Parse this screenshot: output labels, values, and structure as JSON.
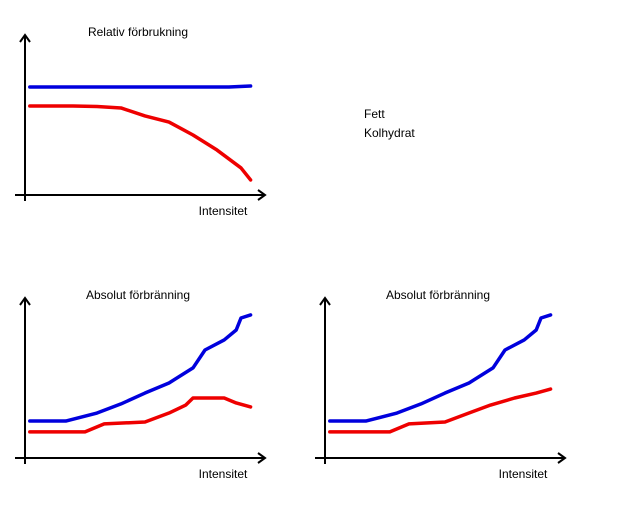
{
  "chart_data": [
    {
      "type": "line",
      "title": "Relativ förbrukning",
      "xlabel": "Intensitet",
      "xlim": [
        0,
        10
      ],
      "ylim": [
        0,
        100
      ],
      "legend": "right",
      "series": [
        {
          "name": "Fett",
          "color": "#ee0000",
          "x": [
            0.2,
            1,
            2,
            3,
            4,
            5,
            6,
            7,
            8,
            9,
            9.4
          ],
          "values": [
            55.6,
            55.6,
            55.6,
            55.3,
            54.4,
            49.4,
            45.6,
            37.5,
            28.1,
            16.9,
            9.4
          ]
        },
        {
          "name": "Kolhydrat",
          "color": "#0000dd",
          "x": [
            0.2,
            5,
            8.5,
            9.4
          ],
          "values": [
            67.5,
            67.5,
            67.5,
            68.1
          ]
        }
      ]
    },
    {
      "type": "line",
      "title": "Absolut förbränning",
      "xlabel": "Intensitet",
      "xlim": [
        0,
        10
      ],
      "ylim": [
        0,
        100
      ],
      "series": [
        {
          "color": "#ee0000",
          "x": [
            0.2,
            2.5,
            3.3,
            5,
            6,
            6.7,
            7,
            8.3,
            8.8,
            9.4
          ],
          "values": [
            16.3,
            16.3,
            21.3,
            22.5,
            28.1,
            33.1,
            37.5,
            37.5,
            34.4,
            31.9
          ]
        },
        {
          "color": "#0000dd",
          "x": [
            0.2,
            1.7,
            3,
            4,
            5,
            6,
            7,
            7.5,
            8.3,
            8.8,
            9,
            9.4
          ],
          "values": [
            23.1,
            23.1,
            28.1,
            33.8,
            40.6,
            46.9,
            56.3,
            67.5,
            73.8,
            80,
            87.5,
            89.4
          ]
        }
      ]
    },
    {
      "type": "line",
      "title": "Absolut förbränning",
      "xlabel": "Intensitet",
      "xlim": [
        0,
        10
      ],
      "ylim": [
        0,
        100
      ],
      "series": [
        {
          "color": "#ee0000",
          "x": [
            0.2,
            2.7,
            3.5,
            5,
            6,
            6.9,
            7.9,
            8.8,
            9.4
          ],
          "values": [
            16.3,
            16.3,
            21.3,
            22.5,
            28.1,
            33.1,
            37.5,
            40.6,
            43.1
          ]
        },
        {
          "color": "#0000dd",
          "x": [
            0.2,
            1.7,
            3,
            4,
            5,
            6,
            7,
            7.5,
            8.3,
            8.8,
            9,
            9.4
          ],
          "values": [
            23.1,
            23.1,
            28.1,
            33.8,
            40.6,
            46.9,
            56.3,
            67.5,
            73.8,
            80,
            87.5,
            89.4
          ]
        }
      ]
    }
  ]
}
